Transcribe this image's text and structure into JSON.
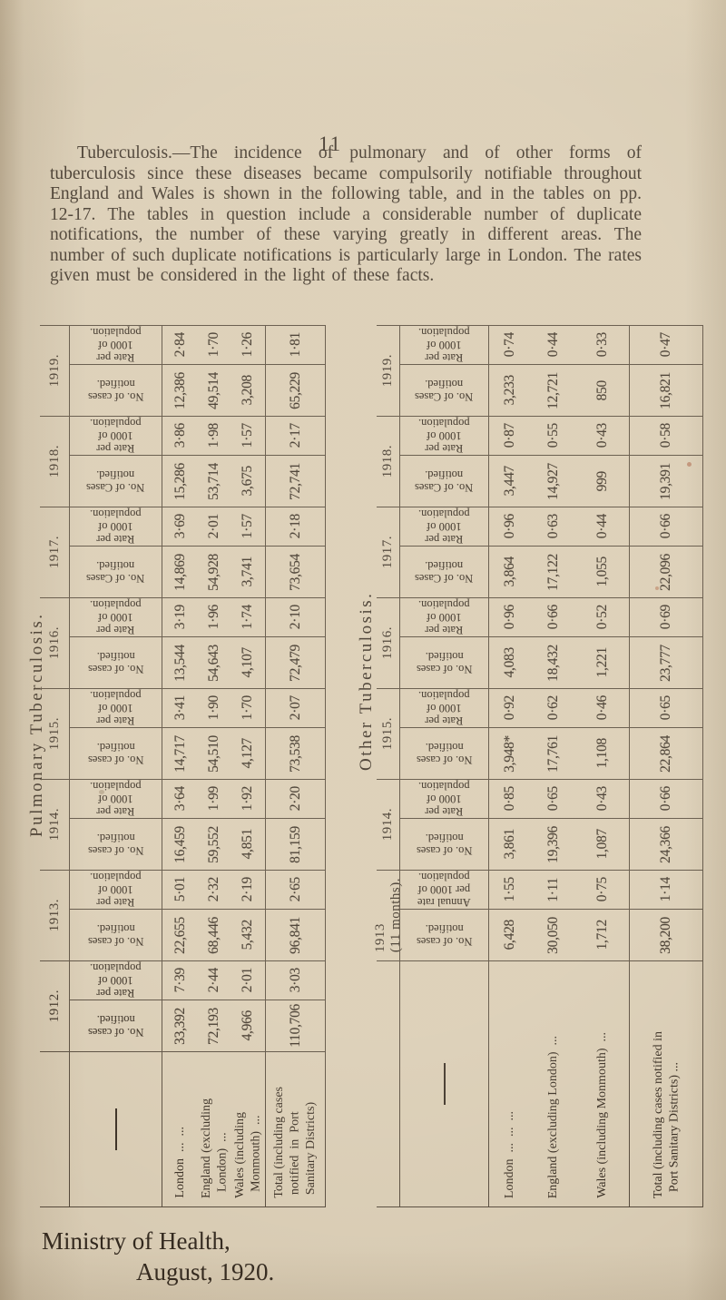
{
  "page": {
    "number": "11",
    "paragraph": "Tuberculosis.—The incidence of pulmonary and of other forms of tuberculosis since these diseases became compulsorily notifiable throughout England and Wales is shown in the following table, and in the tables on pp. 12-17.  The tables in question include a considerable number of duplicate notifications, the number of these varying greatly in different areas.  The number of such duplicate notifications is particularly large in London.  The rates given must be considered in the light of these facts.",
    "footer": [
      "Ministry of Health,",
      "August, 1920."
    ]
  },
  "tables": [
    {
      "title": "Pulmonary Tuberculosis.",
      "corner_mark": "—",
      "area_labels": [
        [
          "London  ...  ..."
        ],
        [
          "England (excluding",
          "  London)  ..."
        ],
        [
          "Wales (including",
          "  Monmouth)  ..."
        ],
        [
          "Total (including cases",
          " notified  in  Port",
          " Sanitary Districts)"
        ]
      ],
      "years": [
        {
          "label": [
            "1919."
          ],
          "rate_header": [
            "Rate per",
            "1000 of",
            "population."
          ],
          "cases_header": [
            "No. of cases",
            "notified."
          ],
          "rates": [
            "2·84",
            "1·70",
            "1·26",
            "1·81"
          ],
          "cases": [
            "12,386",
            "49,514",
            "3,208",
            "65,229"
          ]
        },
        {
          "label": [
            "1918."
          ],
          "rate_header": [
            "Rate per",
            "1000 of",
            "population."
          ],
          "cases_header": [
            "No. of Cases",
            "notified."
          ],
          "rates": [
            "3·86",
            "1·98",
            "1·57",
            "2·17"
          ],
          "cases": [
            "15,286",
            "53,714",
            "3,675",
            "72,741"
          ]
        },
        {
          "label": [
            "1917."
          ],
          "rate_header": [
            "Rate per",
            "1000 of",
            "population."
          ],
          "cases_header": [
            "No. of Cases",
            "notified."
          ],
          "rates": [
            "3·69",
            "2·01",
            "1·57",
            "2·18"
          ],
          "cases": [
            "14,869",
            "54,928",
            "3,741",
            "73,654"
          ]
        },
        {
          "label": [
            "1916."
          ],
          "rate_header": [
            "Rate per",
            "1000 of",
            "population."
          ],
          "cases_header": [
            "No. of cases",
            "notified."
          ],
          "rates": [
            "3·19",
            "1·96",
            "1·74",
            "2·10"
          ],
          "cases": [
            "13,544",
            "54,643",
            "4,107",
            "72,479"
          ]
        },
        {
          "label": [
            "1915."
          ],
          "rate_header": [
            "Rate per",
            "1000 of",
            "population."
          ],
          "cases_header": [
            "No. of cases",
            "notified."
          ],
          "rates": [
            "3·41",
            "1·90",
            "1·70",
            "2·07"
          ],
          "cases": [
            "14,717",
            "54,510",
            "4,127",
            "73,538"
          ]
        },
        {
          "label": [
            "1914."
          ],
          "rate_header": [
            "Rate per",
            "1000 of",
            "population."
          ],
          "cases_header": [
            "No. of cases",
            "notified."
          ],
          "rates": [
            "3·64",
            "1·99",
            "1·92",
            "2·20"
          ],
          "cases": [
            "16,459",
            "59,552",
            "4,851",
            "81,159"
          ]
        },
        {
          "label": [
            "1913."
          ],
          "rate_header": [
            "Rate per",
            "1000 of",
            "population."
          ],
          "cases_header": [
            "No. of cases",
            "notified."
          ],
          "rates": [
            "5·01",
            "2·32",
            "2·19",
            "2·65"
          ],
          "cases": [
            "22,655",
            "68,446",
            "5,432",
            "96,841"
          ]
        },
        {
          "label": [
            "1912."
          ],
          "rate_header": [
            "Rate per",
            "1000 of",
            "population."
          ],
          "cases_header": [
            "No. of cases",
            "notified."
          ],
          "rates": [
            "7·39",
            "2·44",
            "2·01",
            "3·03"
          ],
          "cases": [
            "33,392",
            "72,193",
            "4,966",
            "110,706"
          ]
        }
      ]
    },
    {
      "title": "Other Tuberculosis.",
      "corner_mark": "—",
      "area_labels": [
        [
          "London  ...  ...  ..."
        ],
        [
          "England (excluding London)  ..."
        ],
        [
          "Wales (including Monmouth)  ..."
        ],
        [
          "Total (including cases notified in",
          "  Port Sanitary Districts) ..."
        ]
      ],
      "years": [
        {
          "label": [
            "1919."
          ],
          "rate_header": [
            "Rate per",
            "1000 of",
            "population."
          ],
          "cases_header": [
            "No. of Cases",
            "notified."
          ],
          "rates": [
            "0·74",
            "0·44",
            "0·33",
            "0·47"
          ],
          "cases": [
            "3,233",
            "12,721",
            "850",
            "16,821"
          ]
        },
        {
          "label": [
            "1918."
          ],
          "rate_header": [
            "Rate per",
            "1000 of",
            "population."
          ],
          "cases_header": [
            "No. of Cases",
            "notified."
          ],
          "rates": [
            "0·87",
            "0·55",
            "0·43",
            "0·58"
          ],
          "cases": [
            "3,447",
            "14,927",
            "999",
            "19,391"
          ]
        },
        {
          "label": [
            "1917."
          ],
          "rate_header": [
            "Rate per",
            "1000 of",
            "population."
          ],
          "cases_header": [
            "No. of Cases",
            "notified."
          ],
          "rates": [
            "0·96",
            "0·63",
            "0·44",
            "0·66"
          ],
          "cases": [
            "3,864",
            "17,122",
            "1,055",
            "22,096"
          ]
        },
        {
          "label": [
            "1916."
          ],
          "rate_header": [
            "Rate per",
            "1000 of",
            "population."
          ],
          "cases_header": [
            "No. of cases",
            "notified."
          ],
          "rates": [
            "0·96",
            "0·66",
            "0·52",
            "0·69"
          ],
          "cases": [
            "4,083",
            "18,432",
            "1,221",
            "23,777"
          ]
        },
        {
          "label": [
            "1915."
          ],
          "rate_header": [
            "Rate per",
            "1000 of",
            "population."
          ],
          "cases_header": [
            "No. of cases",
            "notified."
          ],
          "rates": [
            "0·92",
            "0·62",
            "0·46",
            "0·65"
          ],
          "cases": [
            "3,948*",
            "17,761",
            "1,108",
            "22,864"
          ]
        },
        {
          "label": [
            "1914."
          ],
          "rate_header": [
            "Rate per",
            "1000 of",
            "population."
          ],
          "cases_header": [
            "No. of cases",
            "notified."
          ],
          "rates": [
            "0·85",
            "0·65",
            "0·43",
            "0·66"
          ],
          "cases": [
            "3,861",
            "19,396",
            "1,087",
            "24,366"
          ]
        },
        {
          "label": [
            "1913",
            "(11 months)."
          ],
          "rate_header": [
            "Annual rate",
            "per 1000 of",
            "population."
          ],
          "cases_header": [
            "No. of cases",
            "notified."
          ],
          "rates": [
            "1·55",
            "1·11",
            "0·75",
            "1·14"
          ],
          "cases": [
            "6,428",
            "30,050",
            "1,712",
            "38,200"
          ]
        }
      ]
    }
  ]
}
